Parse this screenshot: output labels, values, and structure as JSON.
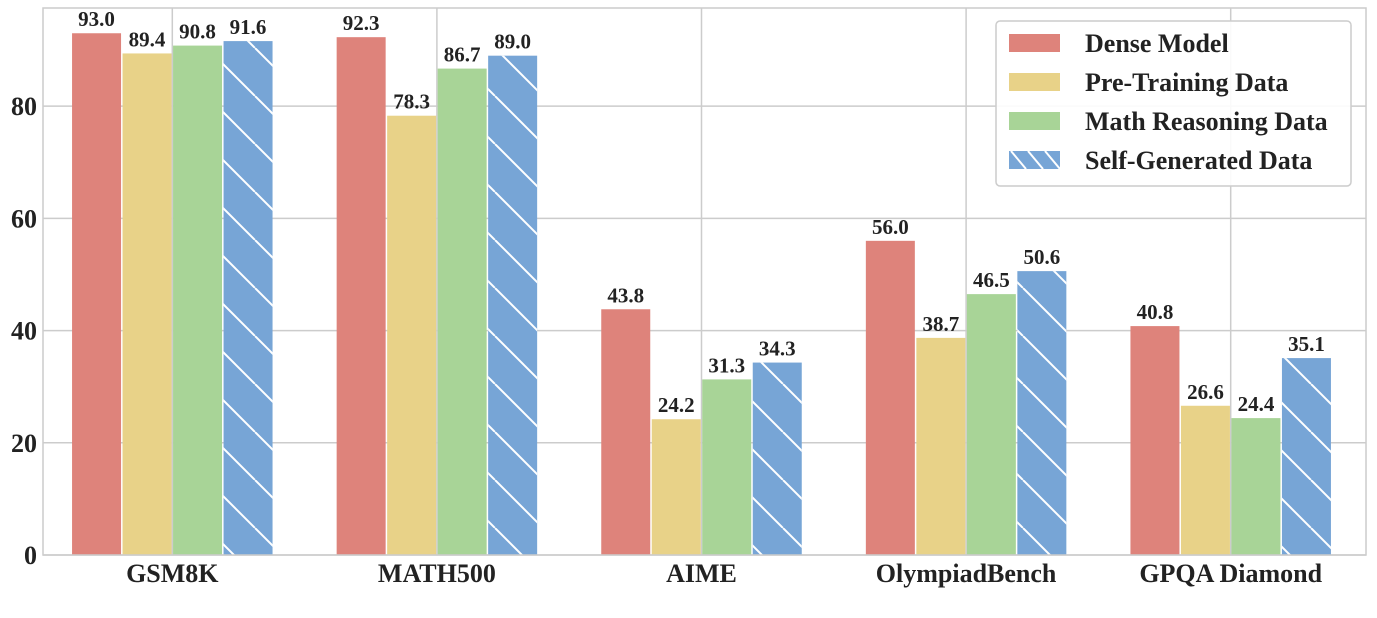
{
  "chart_data": {
    "type": "bar",
    "title": "",
    "xlabel": "",
    "ylabel": "",
    "ylim": [
      0,
      97.5
    ],
    "yticks": [
      0,
      20,
      40,
      60,
      80
    ],
    "grid": true,
    "legend_position": "top-right",
    "categories": [
      "GSM8K",
      "MATH500",
      "AIME",
      "OlympiadBench",
      "GPQA Diamond"
    ],
    "series": [
      {
        "name": "Dense Model",
        "color": "#de837b",
        "hatch": false,
        "values": [
          93.0,
          92.3,
          43.8,
          56.0,
          40.8
        ]
      },
      {
        "name": "Pre-Training Data",
        "color": "#e8d288",
        "hatch": false,
        "values": [
          89.4,
          78.3,
          24.2,
          38.7,
          26.6
        ]
      },
      {
        "name": "Math Reasoning Data",
        "color": "#a8d497",
        "hatch": false,
        "values": [
          90.8,
          86.7,
          31.3,
          46.5,
          24.4
        ]
      },
      {
        "name": "Self-Generated Data",
        "color": "#77a5d6",
        "hatch": true,
        "values": [
          91.6,
          89.0,
          34.3,
          50.6,
          35.1
        ]
      }
    ]
  }
}
